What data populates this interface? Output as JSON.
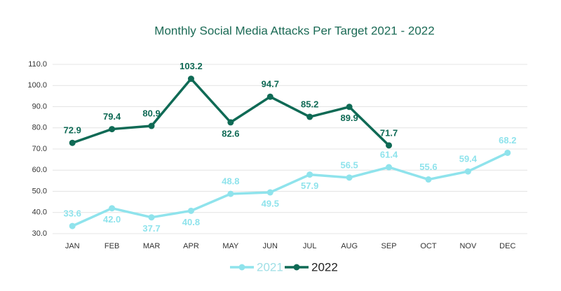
{
  "chart_data": {
    "type": "line",
    "title": "Monthly Social Media Attacks Per Target 2021 - 2022",
    "categories": [
      "JAN",
      "FEB",
      "MAR",
      "APR",
      "MAY",
      "JUN",
      "JUL",
      "AUG",
      "SEP",
      "OCT",
      "NOV",
      "DEC"
    ],
    "series": [
      {
        "name": "2021",
        "color": "#8fe3ec",
        "values": [
          33.6,
          42.0,
          37.7,
          40.8,
          48.8,
          49.5,
          57.9,
          56.5,
          61.4,
          55.6,
          59.4,
          68.2
        ],
        "value_labels": [
          "33.6",
          "42.0",
          "37.7",
          "40.8",
          "48.8",
          "49.5",
          "57.9",
          "56.5",
          "61.4",
          "55.6",
          "59.4",
          "68.2"
        ]
      },
      {
        "name": "2022",
        "color": "#0f6a55",
        "values": [
          72.9,
          79.4,
          80.9,
          103.2,
          82.6,
          94.7,
          85.2,
          89.9,
          71.7,
          null,
          null,
          null
        ],
        "value_labels": [
          "72.9",
          "79.4",
          "80.9",
          "103.2",
          "82.6",
          "94.7",
          "85.2",
          "89.9",
          "71.7",
          null,
          null,
          null
        ]
      }
    ],
    "ylim": [
      30,
      110
    ],
    "yticks": [
      {
        "value": 30,
        "label": "30.0"
      },
      {
        "value": 40,
        "label": "40.0"
      },
      {
        "value": 50,
        "label": "50.0"
      },
      {
        "value": 60,
        "label": "60.0"
      },
      {
        "value": 70,
        "label": "70.0"
      },
      {
        "value": 80,
        "label": "80.0"
      },
      {
        "value": 90,
        "label": "90.0"
      },
      {
        "value": 100,
        "label": "100.0"
      },
      {
        "value": 110,
        "label": "110.0"
      }
    ],
    "grid": true,
    "legend": "bottom"
  }
}
